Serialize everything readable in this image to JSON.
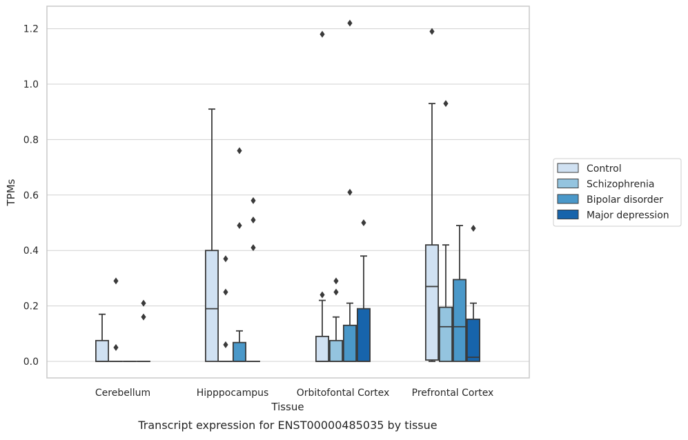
{
  "caption": "Transcript expression for ENST00000485035 by tissue",
  "colors": {
    "Control": "#d0e1f2",
    "Schizophrenia": "#94c4df",
    "Bipolar disorder": "#4a98c9",
    "Major depression": "#1764ab",
    "edge": "#3a3a3a",
    "grid": "#d0d0d0",
    "frame": "#c8c8c8"
  },
  "chart_data": {
    "type": "box",
    "xlabel": "Tissue",
    "ylabel": "TPMs",
    "ylim": [
      -0.06,
      1.28
    ],
    "yticks": [
      "0.0",
      "0.2",
      "0.4",
      "0.6",
      "0.8",
      "1.0",
      "1.2"
    ],
    "grid": true,
    "legend_position": "right",
    "categories": [
      "Cerebellum",
      "Hipppocampus",
      "Orbitofontal Cortex",
      "Prefrontal Cortex"
    ],
    "series": [
      {
        "name": "Control",
        "boxes": [
          {
            "min": 0,
            "q1": 0,
            "median": 0,
            "q3": 0.075,
            "max": 0.17,
            "outliers": []
          },
          {
            "min": 0,
            "q1": 0,
            "median": 0.19,
            "q3": 0.4,
            "max": 0.91,
            "outliers": []
          },
          {
            "min": 0,
            "q1": 0,
            "median": 0,
            "q3": 0.09,
            "max": 0.22,
            "outliers": [
              0.24,
              1.18
            ]
          },
          {
            "min": 0,
            "q1": 0.005,
            "median": 0.27,
            "q3": 0.42,
            "max": 0.93,
            "outliers": [
              1.19
            ]
          }
        ]
      },
      {
        "name": "Schizophrenia",
        "boxes": [
          {
            "min": 0,
            "q1": 0,
            "median": 0,
            "q3": 0,
            "max": 0,
            "outliers": [
              0.05,
              0.29
            ]
          },
          {
            "min": 0,
            "q1": 0,
            "median": 0,
            "q3": 0,
            "max": 0,
            "outliers": [
              0.06,
              0.25,
              0.37
            ]
          },
          {
            "min": 0,
            "q1": 0,
            "median": 0,
            "q3": 0.075,
            "max": 0.16,
            "outliers": [
              0.25,
              0.29
            ]
          },
          {
            "min": 0,
            "q1": 0,
            "median": 0.125,
            "q3": 0.195,
            "max": 0.42,
            "outliers": [
              0.93
            ]
          }
        ]
      },
      {
        "name": "Bipolar disorder",
        "boxes": [
          {
            "min": 0,
            "q1": 0,
            "median": 0,
            "q3": 0,
            "max": 0,
            "outliers": []
          },
          {
            "min": 0,
            "q1": 0,
            "median": 0,
            "q3": 0.068,
            "max": 0.11,
            "outliers": [
              0.49,
              0.76
            ]
          },
          {
            "min": 0,
            "q1": 0,
            "median": 0,
            "q3": 0.13,
            "max": 0.21,
            "outliers": [
              0.61,
              1.22
            ]
          },
          {
            "min": 0,
            "q1": 0,
            "median": 0.125,
            "q3": 0.295,
            "max": 0.49,
            "outliers": []
          }
        ]
      },
      {
        "name": "Major depression",
        "boxes": [
          {
            "min": 0,
            "q1": 0,
            "median": 0,
            "q3": 0,
            "max": 0,
            "outliers": [
              0.16,
              0.21
            ]
          },
          {
            "min": 0,
            "q1": 0,
            "median": 0,
            "q3": 0,
            "max": 0,
            "outliers": [
              0.41,
              0.51,
              0.58
            ]
          },
          {
            "min": 0,
            "q1": 0,
            "median": 0,
            "q3": 0.19,
            "max": 0.38,
            "outliers": [
              0.5
            ]
          },
          {
            "min": 0,
            "q1": 0,
            "median": 0.015,
            "q3": 0.152,
            "max": 0.21,
            "outliers": [
              0.48
            ]
          }
        ]
      }
    ]
  }
}
